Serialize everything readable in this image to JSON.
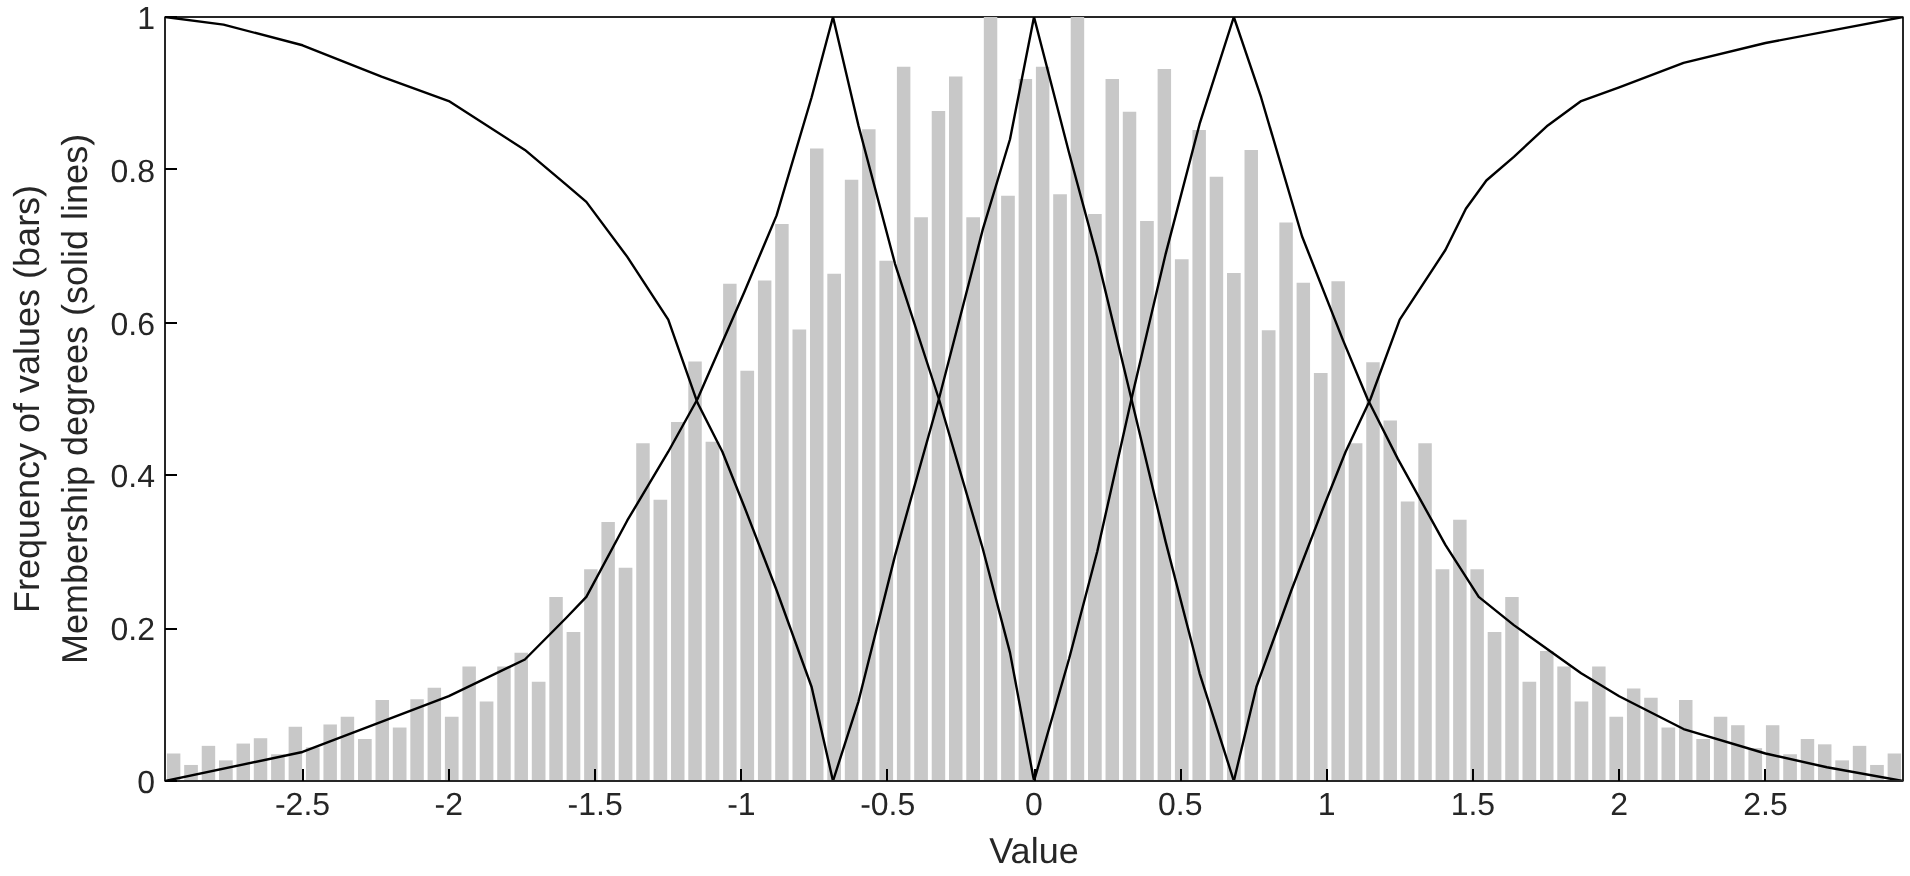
{
  "chart_data": {
    "type": "histogram",
    "xlabel": "Value",
    "ylabel": "Frequency of values (bars)\nMembership degrees (solid lines)",
    "bins": [
      -2.97,
      -2.911,
      -2.851,
      -2.792,
      -2.732,
      -2.673,
      -2.614,
      -2.554,
      -2.495,
      -2.435,
      -2.376,
      -2.317,
      -2.257,
      -2.198,
      -2.138,
      -2.079,
      -2.02,
      -1.96,
      -1.901,
      -1.841,
      -1.782,
      -1.723,
      -1.663,
      -1.604,
      -1.544,
      -1.485,
      -1.426,
      -1.366,
      -1.307,
      -1.247,
      -1.188,
      -1.129,
      -1.069,
      -1.01,
      -0.95,
      -0.891,
      -0.832,
      -0.772,
      -0.713,
      -0.653,
      -0.594,
      -0.535,
      -0.475,
      -0.416,
      -0.356,
      -0.297,
      -0.238,
      -0.178,
      -0.119,
      -0.059,
      0,
      0.059,
      0.119,
      0.178,
      0.238,
      0.297,
      0.356,
      0.416,
      0.475,
      0.535,
      0.594,
      0.653,
      0.713,
      0.772,
      0.832,
      0.891,
      0.95,
      1.01,
      1.069,
      1.129,
      1.188,
      1.247,
      1.307,
      1.366,
      1.426,
      1.485,
      1.544,
      1.604,
      1.663,
      1.723,
      1.782,
      1.841,
      1.901,
      1.96,
      2.02,
      2.079,
      2.138,
      2.198,
      2.257,
      2.317,
      2.376,
      2.435,
      2.495,
      2.554,
      2.614,
      2.673,
      2.732,
      2.792,
      2.851,
      2.911,
      2.97
    ],
    "values": [
      0.036,
      0.021,
      0.046,
      0.027,
      0.049,
      0.056,
      0.035,
      0.071,
      0.044,
      0.074,
      0.084,
      0.055,
      0.106,
      0.07,
      0.107,
      0.122,
      0.084,
      0.15,
      0.104,
      0.15,
      0.168,
      0.13,
      0.241,
      0.195,
      0.277,
      0.339,
      0.279,
      0.442,
      0.368,
      0.47,
      0.549,
      0.444,
      0.651,
      0.537,
      0.655,
      0.729,
      0.591,
      0.828,
      0.664,
      0.787,
      0.853,
      0.681,
      0.935,
      0.738,
      0.877,
      0.922,
      0.738,
      1.0,
      0.766,
      0.919,
      0.935,
      0.768,
      1.0,
      0.742,
      0.919,
      0.876,
      0.733,
      0.932,
      0.683,
      0.852,
      0.791,
      0.665,
      0.826,
      0.59,
      0.731,
      0.652,
      0.534,
      0.654,
      0.442,
      0.548,
      0.472,
      0.366,
      0.442,
      0.277,
      0.342,
      0.277,
      0.195,
      0.241,
      0.13,
      0.17,
      0.15,
      0.104,
      0.15,
      0.084,
      0.121,
      0.109,
      0.07,
      0.106,
      0.055,
      0.084,
      0.073,
      0.043,
      0.073,
      0.035,
      0.055,
      0.048,
      0.027,
      0.046,
      0.021,
      0.036
    ],
    "color": "#c8c8c8",
    "series": [
      {
        "type": "line",
        "color": "#000000",
        "x": [
          -2.97,
          -2.77,
          -2.5,
          -2.23,
          -2.0,
          -1.74,
          -1.6,
          -1.53,
          -1.39,
          -1.25,
          -1.15,
          -1.065,
          -0.99,
          -0.88,
          -0.76,
          -0.687
        ],
        "values": [
          1.0,
          0.99,
          0.963,
          0.922,
          0.89,
          0.826,
          0.781,
          0.758,
          0.686,
          0.604,
          0.495,
          0.431,
          0.359,
          0.25,
          0.123,
          0
        ]
      },
      {
        "type": "line",
        "color": "#000000",
        "x": [
          -2.97,
          -2.5,
          -2.0,
          -1.74,
          -1.6,
          -1.53,
          -1.39,
          -1.25,
          -1.15,
          -0.99,
          -0.88,
          -0.76,
          -0.687,
          -0.6,
          -0.475,
          -0.325,
          -0.175,
          -0.082,
          0
        ],
        "values": [
          0,
          0.038,
          0.111,
          0.159,
          0.213,
          0.241,
          0.341,
          0.431,
          0.5,
          0.64,
          0.74,
          0.895,
          1.0,
          0.858,
          0.677,
          0.5,
          0.304,
          0.168,
          0
        ]
      },
      {
        "type": "line",
        "color": "#000000",
        "x": [
          -0.687,
          -0.6,
          -0.475,
          -0.325,
          -0.175,
          -0.082,
          0,
          0.12,
          0.216,
          0.333,
          0.45,
          0.566,
          0.683
        ],
        "values": [
          0,
          0.104,
          0.295,
          0.5,
          0.722,
          0.84,
          1.0,
          0.822,
          0.686,
          0.5,
          0.313,
          0.141,
          0
        ]
      },
      {
        "type": "line",
        "color": "#000000",
        "x": [
          0,
          0.12,
          0.216,
          0.333,
          0.45,
          0.566,
          0.683,
          0.776,
          0.916,
          1.056,
          1.14,
          1.243,
          1.406,
          1.52,
          1.64,
          1.87,
          2.0,
          2.22,
          2.5,
          2.71,
          2.97
        ],
        "values": [
          0,
          0.16,
          0.3,
          0.5,
          0.69,
          0.86,
          1.0,
          0.895,
          0.713,
          0.577,
          0.5,
          0.422,
          0.309,
          0.241,
          0.204,
          0.141,
          0.111,
          0.068,
          0.036,
          0.018,
          0
        ]
      },
      {
        "type": "line",
        "color": "#000000",
        "x": [
          0.683,
          0.76,
          0.88,
          0.99,
          1.065,
          1.15,
          1.25,
          1.406,
          1.476,
          1.546,
          1.64,
          1.756,
          1.87,
          2.0,
          2.22,
          2.5,
          2.97
        ],
        "values": [
          0,
          0.123,
          0.25,
          0.359,
          0.431,
          0.5,
          0.604,
          0.695,
          0.749,
          0.786,
          0.817,
          0.858,
          0.89,
          0.908,
          0.94,
          0.966,
          1.0
        ]
      }
    ],
    "xlim": [
      -2.97,
      2.97
    ],
    "ylim": [
      0,
      1
    ],
    "xticks": [
      -2.5,
      -2,
      -1.5,
      -1,
      -0.5,
      0,
      0.5,
      1,
      1.5,
      2,
      2.5
    ],
    "yticks": [
      0,
      0.2,
      0.4,
      0.6,
      0.8,
      1
    ],
    "grid": false
  }
}
